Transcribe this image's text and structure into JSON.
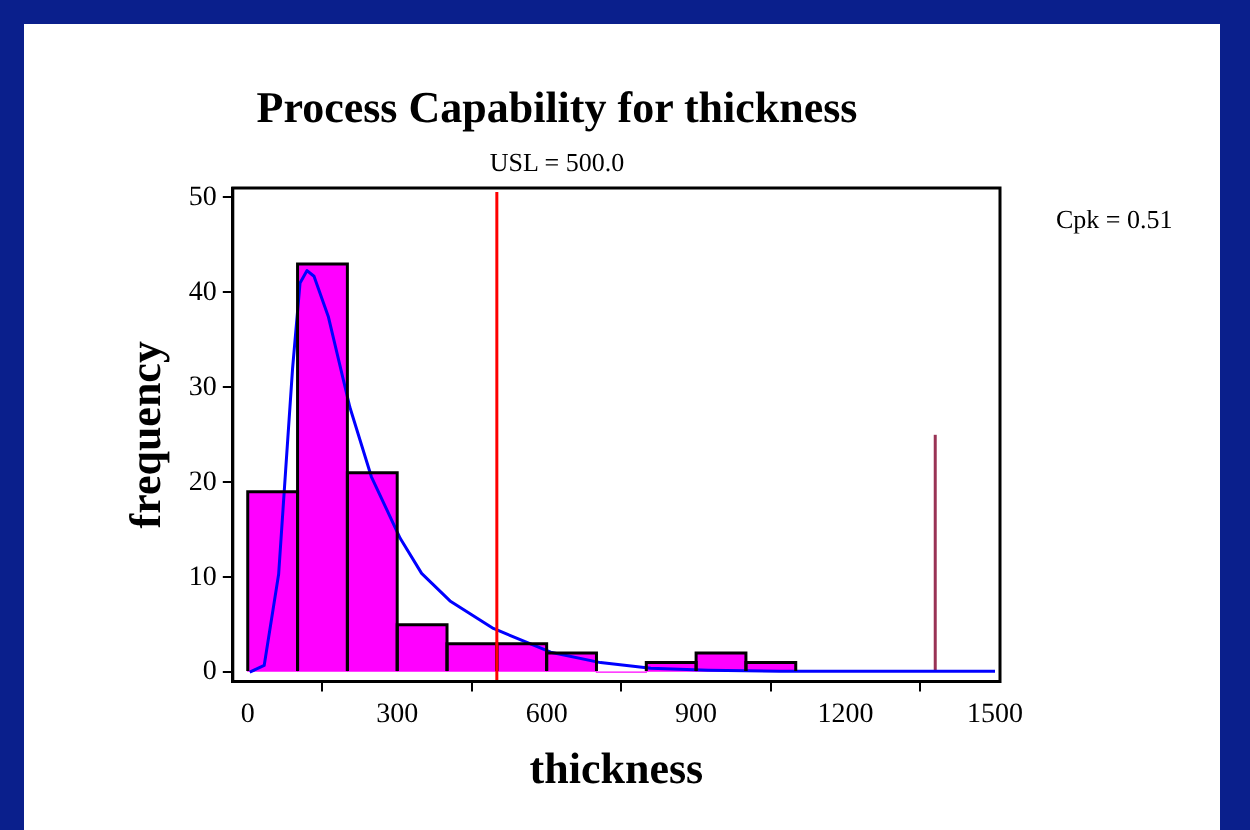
{
  "chart_data": {
    "type": "histogram",
    "title": "Process Capability for thickness",
    "subtitle": "USL = 500.0",
    "xlabel": "thickness",
    "ylabel": "frequency",
    "bins": [
      0,
      100,
      200,
      300,
      400,
      500,
      600,
      700,
      800,
      900,
      1000,
      1100
    ],
    "values": [
      19,
      43,
      21,
      5,
      3,
      3,
      2,
      0,
      1,
      2,
      1
    ],
    "color": "#ff00ff",
    "series": [
      {
        "type": "line",
        "color": "#0000ff",
        "x": [
          4,
          33,
          62,
          76,
          90,
          105,
          119,
          133,
          162,
          205,
          248,
          306,
          349,
          406,
          493,
          608,
          708,
          809,
          924,
          1068,
          1500
        ],
        "values": [
          0,
          0.7,
          10.3,
          21.2,
          32,
          41,
          42.3,
          41.7,
          37.4,
          27.9,
          20.6,
          14.1,
          10.4,
          7.5,
          4.6,
          2.1,
          1,
          0.4,
          0.2,
          0.1,
          0.1
        ]
      },
      {
        "type": "line",
        "color": "#993355",
        "x": [
          1380,
          1380
        ],
        "values": [
          0,
          25
        ]
      }
    ],
    "ref_lines": [
      {
        "axis": "x",
        "value": 500,
        "color": "#ff0000"
      }
    ],
    "annotations": [
      "Cpk = 0.51"
    ],
    "xlim": [
      -30,
      1510
    ],
    "ylim": [
      -1,
      51
    ],
    "xticks": [
      0,
      300,
      600,
      900,
      1200,
      1500
    ],
    "yticks": [
      0,
      10,
      20,
      30,
      40,
      50
    ],
    "grid": false,
    "legend": false,
    "marker": "none"
  }
}
